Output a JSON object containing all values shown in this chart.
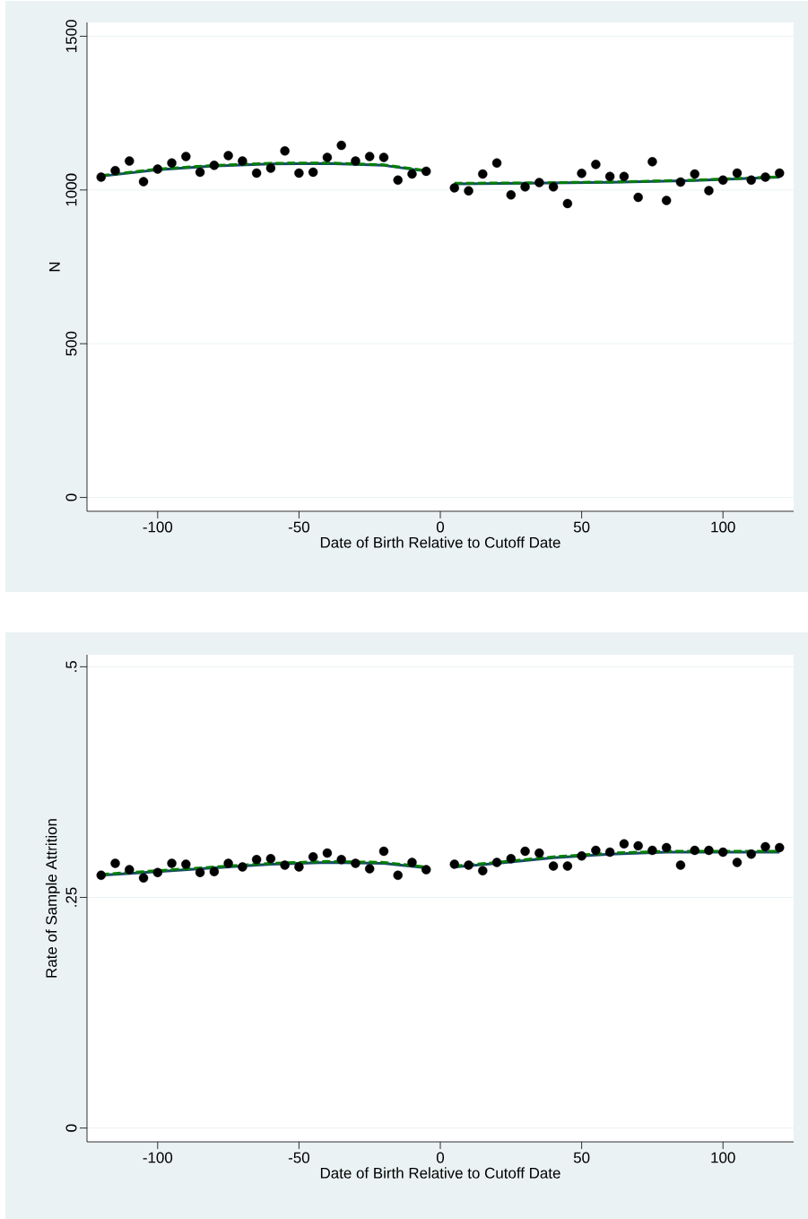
{
  "chart_data": [
    {
      "type": "scatter",
      "xlabel": "Date of Birth Relative to Cutoff Date",
      "ylabel": "N",
      "xlim": [
        -125,
        125
      ],
      "ylim": [
        -45,
        1545
      ],
      "xticks": [
        -100,
        -50,
        0,
        50,
        100
      ],
      "yticks": [
        0,
        500,
        1000,
        1500
      ],
      "grid": "y",
      "series": [
        {
          "type": "scatter",
          "color": "#000000",
          "marker": "circle",
          "x": [
            -120,
            -115,
            -110,
            -105,
            -100,
            -95,
            -90,
            -85,
            -80,
            -75,
            -70,
            -65,
            -60,
            -55,
            -50,
            -45,
            -40,
            -35,
            -30,
            -25,
            -20,
            -15,
            -10,
            -5
          ],
          "values": [
            1042,
            1063,
            1094,
            1027,
            1068,
            1088,
            1109,
            1058,
            1080,
            1112,
            1094,
            1055,
            1071,
            1127,
            1055,
            1058,
            1106,
            1145,
            1094,
            1109,
            1106,
            1032,
            1052,
            1061
          ]
        },
        {
          "type": "scatter",
          "color": "#000000",
          "marker": "circle",
          "x": [
            5,
            10,
            15,
            20,
            25,
            30,
            35,
            40,
            45,
            50,
            55,
            60,
            65,
            70,
            75,
            80,
            85,
            90,
            95,
            100,
            105,
            110,
            115,
            120
          ],
          "values": [
            1007,
            997,
            1052,
            1088,
            984,
            1010,
            1024,
            1010,
            956,
            1054,
            1083,
            1044,
            1044,
            976,
            1092,
            966,
            1026,
            1052,
            998,
            1032,
            1055,
            1032,
            1042,
            1055
          ]
        },
        {
          "type": "line",
          "color": "#1a476f",
          "line_style": "solid",
          "x": [
            -120,
            -100,
            -80,
            -60,
            -40,
            -20,
            -5
          ],
          "values": [
            1045,
            1066,
            1078,
            1085,
            1086,
            1080,
            1061
          ]
        },
        {
          "type": "line",
          "color": "#1a476f",
          "line_style": "solid",
          "x": [
            5,
            30,
            60,
            90,
            120
          ],
          "values": [
            1020,
            1022,
            1025,
            1031,
            1042
          ]
        },
        {
          "type": "line",
          "color": "#008000",
          "line_style": "dashed",
          "x": [
            -120,
            -100,
            -80,
            -60,
            -40,
            -20,
            -5
          ],
          "values": [
            1047,
            1068,
            1080,
            1087,
            1088,
            1082,
            1063
          ]
        },
        {
          "type": "line",
          "color": "#008000",
          "line_style": "dashed",
          "x": [
            5,
            30,
            60,
            90,
            120
          ],
          "values": [
            1022,
            1023,
            1026,
            1032,
            1043
          ]
        }
      ]
    },
    {
      "type": "scatter",
      "xlabel": "Date of Birth Relative to Cutoff Date",
      "ylabel": "Rate of Sample Attrition",
      "xlim": [
        -125,
        125
      ],
      "ylim": [
        -0.015,
        0.513
      ],
      "xticks": [
        -100,
        -50,
        0,
        50,
        100
      ],
      "yticks": [
        0,
        {
          "value": 0.25,
          "label": ".25"
        },
        {
          "value": 0.5,
          "label": ".5"
        }
      ],
      "grid": "y",
      "series": [
        {
          "type": "scatter",
          "color": "#000000",
          "marker": "circle",
          "x": [
            -120,
            -115,
            -110,
            -105,
            -100,
            -95,
            -90,
            -85,
            -80,
            -75,
            -70,
            -65,
            -60,
            -55,
            -50,
            -45,
            -40,
            -35,
            -30,
            -25,
            -20,
            -15,
            -10,
            -5
          ],
          "values": [
            0.274,
            0.287,
            0.28,
            0.271,
            0.277,
            0.287,
            0.286,
            0.277,
            0.278,
            0.287,
            0.283,
            0.291,
            0.292,
            0.285,
            0.283,
            0.294,
            0.298,
            0.291,
            0.287,
            0.281,
            0.3,
            0.274,
            0.288,
            0.28
          ]
        },
        {
          "type": "scatter",
          "color": "#000000",
          "marker": "circle",
          "x": [
            5,
            10,
            15,
            20,
            25,
            30,
            35,
            40,
            45,
            50,
            55,
            60,
            65,
            70,
            75,
            80,
            85,
            90,
            95,
            100,
            105,
            110,
            115,
            120
          ],
          "values": [
            0.286,
            0.285,
            0.279,
            0.288,
            0.292,
            0.3,
            0.298,
            0.284,
            0.284,
            0.295,
            0.301,
            0.299,
            0.308,
            0.306,
            0.301,
            0.304,
            0.285,
            0.301,
            0.301,
            0.299,
            0.288,
            0.297,
            0.305,
            0.304
          ]
        },
        {
          "type": "line",
          "color": "#1a476f",
          "line_style": "solid",
          "x": [
            -120,
            -100,
            -80,
            -60,
            -40,
            -20,
            -5
          ],
          "values": [
            0.274,
            0.278,
            0.282,
            0.286,
            0.288,
            0.287,
            0.282
          ]
        },
        {
          "type": "line",
          "color": "#1a476f",
          "line_style": "solid",
          "x": [
            5,
            20,
            40,
            60,
            80,
            100,
            120
          ],
          "values": [
            0.283,
            0.287,
            0.293,
            0.297,
            0.299,
            0.299,
            0.299
          ]
        },
        {
          "type": "line",
          "color": "#008000",
          "line_style": "dashed",
          "x": [
            -120,
            -100,
            -80,
            -60,
            -40,
            -20,
            -5
          ],
          "values": [
            0.275,
            0.279,
            0.283,
            0.287,
            0.289,
            0.288,
            0.283
          ]
        },
        {
          "type": "line",
          "color": "#008000",
          "line_style": "dashed",
          "x": [
            5,
            20,
            40,
            60,
            80,
            100,
            120
          ],
          "values": [
            0.284,
            0.288,
            0.294,
            0.298,
            0.3,
            0.3,
            0.3
          ]
        }
      ]
    }
  ]
}
